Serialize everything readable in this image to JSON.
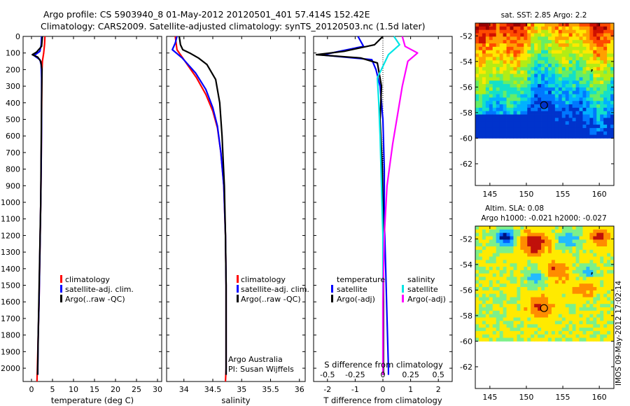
{
  "figure": {
    "title_line1": "Argo profile: CS 5903940_8 01-May-2012 20120501_401 57.414S 152.42E",
    "title_line2": "Climatology: CARS2009. Satellite-adjusted climatology: synTS_20120503.nc (1.5d later)",
    "credit_line1": "Argo Australia",
    "credit_line2": "PI: Susan Wijffels",
    "stamp": "IMOS 09-May-2012 17:02:14"
  },
  "colors": {
    "climatology": "#ff0000",
    "satellite_adj": "#0000ff",
    "argo": "#000000",
    "s_satellite": "#00e5e5",
    "s_argo": "#ff00ff",
    "map_land": "#ffffff"
  },
  "chart_data": [
    {
      "id": "temperature",
      "type": "line",
      "xlabel": "temperature (deg C)",
      "ylabel": "",
      "xlim": [
        -2,
        31
      ],
      "ylim": [
        2080,
        0
      ],
      "xticks": [
        "0",
        "5",
        "10",
        "15",
        "20",
        "25",
        "30"
      ],
      "yticks": [
        "0",
        "100",
        "200",
        "300",
        "400",
        "500",
        "600",
        "700",
        "800",
        "900",
        "1000",
        "1100",
        "1200",
        "1300",
        "1400",
        "1500",
        "1600",
        "1700",
        "1800",
        "1900",
        "2000"
      ],
      "legend": [
        "climatology",
        "satellite-adj. clim.",
        "Argo(..raw -QC)"
      ],
      "series": [
        {
          "name": "climatology",
          "color": "#ff0000",
          "points": [
            [
              3.2,
              0
            ],
            [
              3.1,
              50
            ],
            [
              2.9,
              100
            ],
            [
              2.6,
              150
            ],
            [
              2.5,
              200
            ],
            [
              2.45,
              300
            ],
            [
              2.4,
              500
            ],
            [
              2.3,
              800
            ],
            [
              2.2,
              1000
            ],
            [
              2.0,
              1300
            ],
            [
              1.8,
              1600
            ],
            [
              1.6,
              1800
            ],
            [
              1.4,
              2000
            ],
            [
              1.3,
              2080
            ]
          ]
        },
        {
          "name": "satellite-adj. clim.",
          "color": "#0000ff",
          "points": [
            [
              2.4,
              0
            ],
            [
              2.3,
              50
            ],
            [
              2.0,
              90
            ],
            [
              0.6,
              115
            ],
            [
              2.0,
              140
            ],
            [
              2.3,
              170
            ],
            [
              2.4,
              250
            ],
            [
              2.4,
              500
            ],
            [
              2.3,
              800
            ],
            [
              2.2,
              1000
            ],
            [
              2.0,
              1300
            ],
            [
              1.8,
              1600
            ],
            [
              1.6,
              1800
            ],
            [
              1.5,
              2000
            ],
            [
              1.5,
              2040
            ]
          ]
        },
        {
          "name": "Argo(..raw -QC)",
          "color": "#000000",
          "points": [
            [
              2.6,
              0
            ],
            [
              2.4,
              60
            ],
            [
              1.2,
              95
            ],
            [
              0.2,
              110
            ],
            [
              1.5,
              125
            ],
            [
              2.2,
              150
            ],
            [
              2.5,
              200
            ],
            [
              2.4,
              400
            ],
            [
              2.3,
              700
            ],
            [
              2.2,
              1000
            ],
            [
              1.9,
              1400
            ],
            [
              1.6,
              1800
            ],
            [
              1.45,
              2040
            ]
          ]
        }
      ]
    },
    {
      "id": "salinity",
      "type": "line",
      "xlabel": "salinity",
      "ylabel": "",
      "xlim": [
        33.7,
        36.1
      ],
      "ylim": [
        2080,
        0
      ],
      "xticks": [
        "34",
        "34.5",
        "35",
        "35.5",
        "36"
      ],
      "legend": [
        "climatology",
        "satellite-adj. clim.",
        "Argo(..raw -QC)"
      ],
      "series": [
        {
          "name": "climatology",
          "color": "#ff0000",
          "points": [
            [
              33.85,
              0
            ],
            [
              33.88,
              80
            ],
            [
              34.02,
              150
            ],
            [
              34.22,
              250
            ],
            [
              34.38,
              350
            ],
            [
              34.5,
              450
            ],
            [
              34.58,
              550
            ],
            [
              34.64,
              700
            ],
            [
              34.69,
              900
            ],
            [
              34.72,
              1200
            ],
            [
              34.73,
              1500
            ],
            [
              34.73,
              1800
            ],
            [
              34.73,
              2000
            ],
            [
              34.72,
              2080
            ]
          ]
        },
        {
          "name": "satellite-adj. clim.",
          "color": "#0000ff",
          "points": [
            [
              33.88,
              0
            ],
            [
              33.85,
              40
            ],
            [
              33.8,
              80
            ],
            [
              33.97,
              130
            ],
            [
              34.2,
              220
            ],
            [
              34.38,
              320
            ],
            [
              34.5,
              430
            ],
            [
              34.58,
              540
            ],
            [
              34.64,
              700
            ],
            [
              34.69,
              900
            ],
            [
              34.72,
              1200
            ],
            [
              34.73,
              1500
            ],
            [
              34.73,
              1800
            ],
            [
              34.73,
              2040
            ]
          ]
        },
        {
          "name": "Argo(..raw -QC)",
          "color": "#000000",
          "points": [
            [
              33.92,
              0
            ],
            [
              33.94,
              50
            ],
            [
              33.98,
              80
            ],
            [
              34.1,
              100
            ],
            [
              34.25,
              130
            ],
            [
              34.4,
              170
            ],
            [
              34.55,
              260
            ],
            [
              34.62,
              400
            ],
            [
              34.66,
              600
            ],
            [
              34.7,
              900
            ],
            [
              34.72,
              1200
            ],
            [
              34.73,
              1500
            ],
            [
              34.73,
              1800
            ],
            [
              34.73,
              2040
            ]
          ]
        }
      ]
    },
    {
      "id": "difference",
      "type": "line",
      "xlabel": "T difference from climatology",
      "xlabel_top": "S difference from climatology",
      "ylabel": "",
      "xlim": [
        -2.5,
        2.5
      ],
      "ylim": [
        2080,
        0
      ],
      "xticks": [
        "-2",
        "-1",
        "0",
        "1",
        "2"
      ],
      "xticks_top": [
        "-0.5",
        "-0.25",
        "0",
        "0.25",
        "0.5"
      ],
      "legend_left_title": "temperature",
      "legend_right_title": "salinity",
      "legend": [
        "satellite",
        "Argo(-adj)",
        "satellite",
        "Argo(-adj)"
      ],
      "series": [
        {
          "name": "satellite",
          "color": "#0000ff",
          "points": [
            [
              -0.9,
              0
            ],
            [
              -0.7,
              60
            ],
            [
              -2.2,
              112
            ],
            [
              -0.4,
              140
            ],
            [
              -0.25,
              200
            ],
            [
              -0.1,
              300
            ],
            [
              0.0,
              500
            ],
            [
              0.05,
              800
            ],
            [
              0.05,
              1100
            ],
            [
              0.1,
              1400
            ],
            [
              0.15,
              1700
            ],
            [
              0.2,
              2000
            ],
            [
              0.2,
              2040
            ]
          ]
        },
        {
          "name": "Argo(-adj)",
          "color": "#000000",
          "points": [
            [
              0.0,
              0
            ],
            [
              -0.3,
              50
            ],
            [
              -1.4,
              90
            ],
            [
              -2.4,
              110
            ],
            [
              -0.8,
              130
            ],
            [
              -0.2,
              160
            ],
            [
              -0.05,
              300
            ],
            [
              -0.1,
              500
            ],
            [
              -0.02,
              800
            ],
            [
              0.0,
              1000
            ],
            [
              0.02,
              1400
            ],
            [
              0.02,
              2040
            ]
          ]
        },
        {
          "name": "satellite",
          "color": "#00e5e5",
          "points": [
            [
              0.4,
              0
            ],
            [
              0.6,
              50
            ],
            [
              0.2,
              110
            ],
            [
              -0.2,
              250
            ],
            [
              -0.15,
              400
            ],
            [
              -0.1,
              600
            ],
            [
              -0.05,
              900
            ],
            [
              0.0,
              1200
            ],
            [
              0.0,
              1600
            ],
            [
              0.0,
              2040
            ]
          ]
        },
        {
          "name": "Argo(-adj)",
          "color": "#ff00ff",
          "points": [
            [
              0.7,
              0
            ],
            [
              0.8,
              60
            ],
            [
              1.25,
              100
            ],
            [
              0.9,
              150
            ],
            [
              0.7,
              300
            ],
            [
              0.55,
              450
            ],
            [
              0.35,
              650
            ],
            [
              0.15,
              900
            ],
            [
              0.05,
              1200
            ],
            [
              0.0,
              1600
            ],
            [
              0.0,
              2040
            ]
          ]
        }
      ]
    },
    {
      "id": "sst_map",
      "type": "heatmap",
      "title": "sat. SST: 2.85 Argo: 2.2",
      "xlim": [
        143,
        162
      ],
      "ylim": [
        -63.7,
        -51
      ],
      "xticks": [
        "145",
        "150",
        "155",
        "160"
      ],
      "yticks": [
        "-52",
        "-54",
        "-56",
        "-58",
        "-60",
        "-62"
      ],
      "data_extent_lat": -60,
      "float_position": [
        152.42,
        -57.414
      ],
      "palette": [
        "#0033cc",
        "#0077ff",
        "#00b2ff",
        "#14e0c8",
        "#66ee66",
        "#b4ec14",
        "#ffe800",
        "#ffa000",
        "#ff4a00",
        "#d01000",
        "#980000"
      ]
    },
    {
      "id": "sla_map",
      "type": "heatmap",
      "title_line1": "Altim. SLA: 0.08",
      "title_line2": "Argo h1000: -0.021 h2000: -0.027",
      "xlim": [
        143,
        162
      ],
      "ylim": [
        -63.7,
        -51
      ],
      "xticks": [
        "145",
        "150",
        "155",
        "160"
      ],
      "yticks": [
        "-52",
        "-54",
        "-56",
        "-58",
        "-60",
        "-62"
      ],
      "data_extent_lat": -60,
      "float_position": [
        152.42,
        -57.414
      ],
      "palette": [
        "#001480",
        "#0060ff",
        "#22bbff",
        "#7cf08a",
        "#ffea00",
        "#ff8c00",
        "#c0100a"
      ]
    }
  ]
}
